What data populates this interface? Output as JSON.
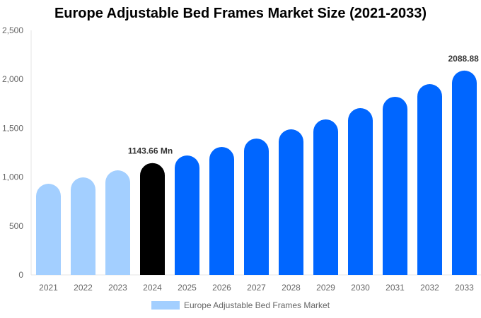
{
  "chart_data": {
    "type": "bar",
    "title": "Europe Adjustable Bed Frames Market Size (2021-2033)",
    "categories": [
      "2021",
      "2022",
      "2023",
      "2024",
      "2025",
      "2026",
      "2027",
      "2028",
      "2029",
      "2030",
      "2031",
      "2032",
      "2033"
    ],
    "series": [
      {
        "name": "Europe Adjustable Bed Frames Market",
        "values": [
          932,
          997,
          1069,
          1143.66,
          1221,
          1308,
          1394,
          1488,
          1590,
          1705,
          1821,
          1951,
          2088.88
        ]
      }
    ],
    "bar_colors": [
      "#a3cfff",
      "#a3cfff",
      "#a3cfff",
      "#000000",
      "#0066ff",
      "#0066ff",
      "#0066ff",
      "#0066ff",
      "#0066ff",
      "#0066ff",
      "#0066ff",
      "#0066ff",
      "#0066ff"
    ],
    "data_labels": {
      "3": "1143.66 Mn",
      "12": "2088.88 Mn"
    },
    "ylim": [
      0,
      2500
    ],
    "yticks": [
      "0",
      "500",
      "1,000",
      "1,500",
      "2,000",
      "2,500"
    ],
    "ytick_values": [
      0,
      500,
      1000,
      1500,
      2000,
      2500
    ],
    "xlabel": "",
    "ylabel": "",
    "grid": false,
    "legend": {
      "position": "bottom",
      "label": "Europe Adjustable Bed Frames Market",
      "color": "#a3cfff"
    }
  }
}
